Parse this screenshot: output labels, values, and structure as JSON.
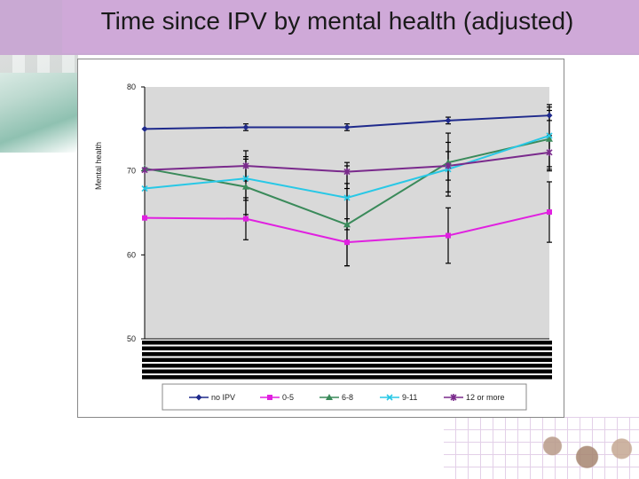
{
  "slide": {
    "title": "Time since IPV by mental health (adjusted)"
  },
  "colors": {
    "title_band": "#cfa9d8",
    "plot_area": "#d9d9d9"
  },
  "chart_data": {
    "type": "line",
    "title": "",
    "xlabel": "",
    "ylabel": "Mental health",
    "ylim": [
      50,
      80
    ],
    "yticks": [
      50,
      60,
      70,
      80
    ],
    "grid": false,
    "legend_position": "bottom",
    "x": [
      1,
      2,
      3,
      4,
      5
    ],
    "series": [
      {
        "name": "no IPV",
        "color": "#1f2a8c",
        "marker": "diamond",
        "values": [
          75.0,
          75.2,
          75.2,
          76.0,
          76.6
        ],
        "lower": [
          75.0,
          74.8,
          74.8,
          75.6,
          76.0
        ],
        "upper": [
          75.0,
          75.6,
          75.6,
          76.4,
          77.2
        ]
      },
      {
        "name": "0-5",
        "color": "#e020e0",
        "marker": "square",
        "values": [
          64.4,
          64.3,
          61.5,
          62.3,
          65.1
        ],
        "lower": [
          64.4,
          61.8,
          58.7,
          59.0,
          61.5
        ],
        "upper": [
          64.4,
          66.8,
          64.3,
          65.6,
          68.7
        ]
      },
      {
        "name": "6-8",
        "color": "#3a8a5a",
        "marker": "triangle",
        "values": [
          70.3,
          68.1,
          63.6,
          71.0,
          73.8
        ],
        "lower": [
          70.3,
          64.8,
          58.7,
          67.5,
          70.0
        ],
        "upper": [
          70.3,
          71.4,
          68.5,
          74.5,
          77.6
        ]
      },
      {
        "name": "9-11",
        "color": "#28c8e6",
        "marker": "x",
        "values": [
          67.9,
          69.1,
          66.8,
          70.2,
          74.2
        ],
        "lower": [
          67.9,
          66.5,
          63.0,
          67.0,
          70.5
        ],
        "upper": [
          67.9,
          71.7,
          70.6,
          73.4,
          77.9
        ]
      },
      {
        "name": "12 or more",
        "color": "#7a2a8c",
        "marker": "star",
        "values": [
          70.1,
          70.6,
          69.9,
          70.6,
          72.2
        ],
        "lower": [
          70.1,
          68.8,
          67.9,
          68.9,
          70.2
        ],
        "upper": [
          70.1,
          72.4,
          71.0,
          72.3,
          74.2
        ]
      }
    ]
  }
}
